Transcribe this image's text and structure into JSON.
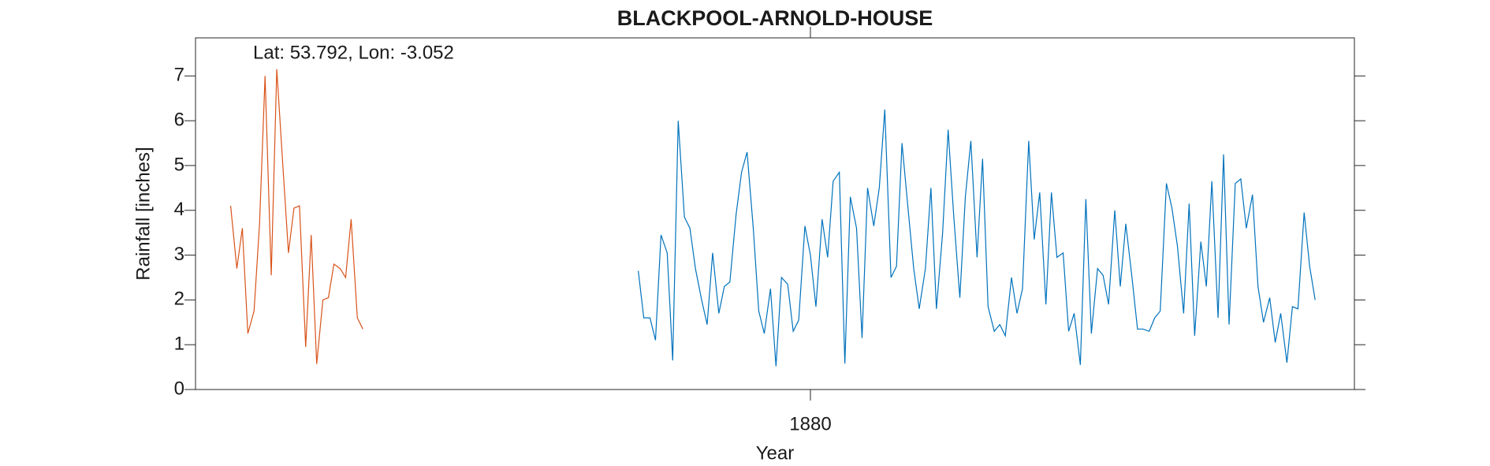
{
  "chart_data": {
    "type": "line",
    "title": "BLACKPOOL-ARNOLD-HOUSE",
    "xlabel": "Year",
    "ylabel": "Rainfall [inches]",
    "annotation": "Lat: 53.792, Lon: -3.052",
    "xlim": [
      1871.07,
      1887.9
    ],
    "ylim": [
      0,
      7.85
    ],
    "xticks": [
      1880
    ],
    "yticks": [
      0,
      1,
      2,
      3,
      4,
      5,
      6,
      7
    ],
    "grid": false,
    "series": [
      {
        "color": "#d95319",
        "x": [
          1871.58,
          1871.67,
          1871.75,
          1871.83,
          1871.92,
          1872,
          1872.08,
          1872.17,
          1872.25,
          1872.33,
          1872.42,
          1872.5,
          1872.58,
          1872.67,
          1872.75,
          1872.83,
          1872.92,
          1873,
          1873.08,
          1873.17,
          1873.25,
          1873.33,
          1873.42,
          1873.5
        ],
        "values": [
          4.1,
          2.7,
          3.6,
          1.25,
          1.75,
          3.7,
          7.0,
          2.55,
          7.15,
          5.2,
          3.05,
          4.05,
          4.1,
          0.95,
          3.45,
          0.57,
          2.0,
          2.05,
          2.8,
          2.7,
          2.5,
          3.8,
          1.6,
          1.35
        ]
      },
      {
        "color": "#0072bd",
        "x": [
          1877.5,
          1877.58,
          1877.67,
          1877.75,
          1877.83,
          1877.92,
          1878,
          1878.08,
          1878.17,
          1878.25,
          1878.33,
          1878.42,
          1878.5,
          1878.58,
          1878.67,
          1878.75,
          1878.83,
          1878.92,
          1879,
          1879.08,
          1879.17,
          1879.25,
          1879.33,
          1879.42,
          1879.5,
          1879.58,
          1879.67,
          1879.75,
          1879.83,
          1879.92,
          1880,
          1880.08,
          1880.17,
          1880.25,
          1880.33,
          1880.42,
          1880.5,
          1880.58,
          1880.67,
          1880.75,
          1880.83,
          1880.92,
          1881,
          1881.08,
          1881.17,
          1881.25,
          1881.33,
          1881.42,
          1881.5,
          1881.58,
          1881.67,
          1881.75,
          1881.83,
          1881.92,
          1882,
          1882.08,
          1882.17,
          1882.25,
          1882.33,
          1882.42,
          1882.5,
          1882.58,
          1882.67,
          1882.75,
          1882.83,
          1882.92,
          1883,
          1883.08,
          1883.17,
          1883.25,
          1883.33,
          1883.42,
          1883.5,
          1883.58,
          1883.67,
          1883.75,
          1883.83,
          1883.92,
          1884,
          1884.08,
          1884.17,
          1884.25,
          1884.33,
          1884.42,
          1884.5,
          1884.58,
          1884.67,
          1884.75,
          1884.83,
          1884.92,
          1885,
          1885.08,
          1885.17,
          1885.25,
          1885.33,
          1885.42,
          1885.5,
          1885.58,
          1885.67,
          1885.75,
          1885.83,
          1885.92,
          1886,
          1886.08,
          1886.17,
          1886.25,
          1886.33,
          1886.42,
          1886.5,
          1886.58,
          1886.67,
          1886.75,
          1886.83,
          1886.92,
          1887,
          1887.08,
          1887.17,
          1887.25,
          1887.33
        ],
        "values": [
          2.65,
          1.6,
          1.6,
          1.1,
          3.45,
          3.05,
          0.65,
          6.0,
          3.85,
          3.6,
          2.7,
          2.0,
          1.45,
          3.05,
          1.7,
          2.3,
          2.4,
          3.9,
          4.85,
          5.3,
          3.6,
          1.75,
          1.25,
          2.25,
          0.52,
          2.5,
          2.35,
          1.3,
          1.55,
          3.65,
          3.0,
          1.85,
          3.8,
          2.95,
          4.65,
          4.85,
          0.58,
          4.3,
          3.6,
          1.15,
          4.5,
          3.65,
          4.5,
          6.25,
          2.5,
          2.75,
          5.5,
          4.0,
          2.7,
          1.8,
          2.7,
          4.5,
          1.8,
          3.5,
          5.8,
          3.9,
          2.05,
          4.3,
          5.55,
          2.95,
          5.15,
          1.85,
          1.3,
          1.45,
          1.2,
          2.5,
          1.7,
          2.25,
          5.55,
          3.35,
          4.4,
          1.9,
          4.4,
          2.95,
          3.05,
          1.3,
          1.7,
          0.55,
          4.25,
          1.25,
          2.7,
          2.55,
          1.9,
          4.0,
          2.3,
          3.7,
          2.5,
          1.35,
          1.35,
          1.3,
          1.6,
          1.75,
          4.6,
          4.05,
          3.2,
          1.7,
          4.15,
          1.2,
          3.3,
          2.3,
          4.65,
          1.6,
          5.25,
          1.45,
          4.6,
          4.7,
          3.6,
          4.35,
          2.3,
          1.5,
          2.05,
          1.05,
          1.7,
          0.6,
          1.85,
          1.8,
          3.95,
          2.75,
          2.0
        ]
      }
    ]
  }
}
